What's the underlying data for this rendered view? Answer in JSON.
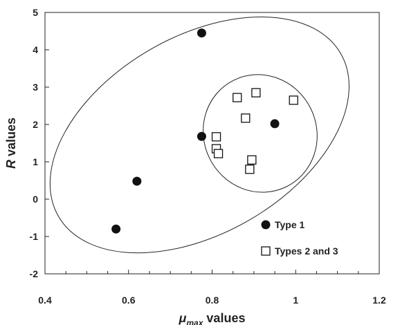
{
  "chart_data": {
    "type": "scatter",
    "title": "",
    "xlabel": {
      "symbol": "μ",
      "subscript": "max",
      "suffix": " values"
    },
    "ylabel": {
      "symbol": "R",
      "suffix": " values"
    },
    "xlim": [
      0.4,
      1.2
    ],
    "ylim": [
      -2,
      5
    ],
    "x_ticks": [
      0.4,
      0.6,
      0.8,
      1.0,
      1.2
    ],
    "x_tick_labels": [
      "0.4",
      "0.6",
      "0.8",
      "1",
      "1.2"
    ],
    "y_ticks": [
      -2,
      -1,
      0,
      1,
      2,
      3,
      4,
      5
    ],
    "y_tick_labels": [
      "-2",
      "-1",
      "0",
      "1",
      "2",
      "3",
      "4",
      "5"
    ],
    "grid": false,
    "legend_position": "bottom-right",
    "series": [
      {
        "name": "Type 1",
        "marker": "filled-circle",
        "color": "#111111",
        "points": [
          [
            0.57,
            -0.8
          ],
          [
            0.62,
            0.48
          ],
          [
            0.775,
            4.45
          ],
          [
            0.775,
            1.68
          ],
          [
            0.95,
            2.02
          ]
        ]
      },
      {
        "name": "Types 2 and 3",
        "marker": "open-square",
        "color": "#111111",
        "points": [
          [
            0.86,
            2.72
          ],
          [
            0.905,
            2.85
          ],
          [
            0.995,
            2.65
          ],
          [
            0.88,
            2.17
          ],
          [
            0.81,
            1.67
          ],
          [
            0.81,
            1.35
          ],
          [
            0.815,
            1.22
          ],
          [
            0.895,
            1.05
          ],
          [
            0.89,
            0.8
          ]
        ]
      }
    ],
    "annotations": [
      {
        "type": "ellipse",
        "center": [
          0.77,
          1.72
        ],
        "semi_axes": [
          0.39,
          2.64
        ],
        "rotation_deg": -30
      },
      {
        "type": "ellipse",
        "center": [
          0.915,
          1.76
        ],
        "semi_axes": [
          0.135,
          1.59
        ],
        "rotation_deg": -26
      }
    ]
  }
}
